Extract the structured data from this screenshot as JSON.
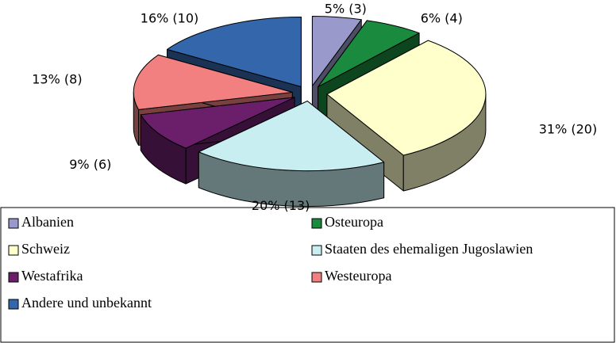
{
  "chart_data": {
    "type": "pie3d",
    "categories": [
      "Albanien",
      "Osteuropa",
      "Schweiz",
      "Staaten des ehemaligen Jugoslawien",
      "Westafrika",
      "Westeuropa",
      "Andere und unbekannt"
    ],
    "values": [
      5,
      6,
      31,
      20,
      9,
      13,
      16
    ],
    "value_labels": [
      "5% (3)",
      "6% (4)",
      "31% (20)",
      "20% (13)",
      "9% (6)",
      "13% (8)",
      "16% (10)"
    ],
    "colors": [
      "#9999cc",
      "#1a8a3e",
      "#ffffcc",
      "#c8eef2",
      "#6b1f6b",
      "#f28080",
      "#3366aa"
    ],
    "legend": "bottom"
  }
}
